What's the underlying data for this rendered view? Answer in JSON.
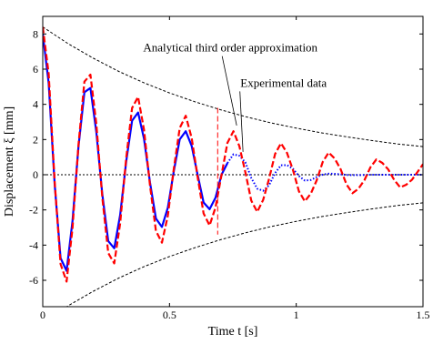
{
  "chart_data": {
    "type": "line",
    "xlabel": "Time  t  [s]",
    "ylabel": "Displacement ξ  [mm]",
    "xlim": [
      0,
      1.5
    ],
    "ylim": [
      -7.5,
      9
    ],
    "x_ticks": [
      0,
      0.5,
      1,
      1.5
    ],
    "x_tick_labels": [
      "0",
      "0.5",
      "1",
      "1.5"
    ],
    "y_ticks": [
      -6,
      -4,
      -2,
      0,
      2,
      4,
      6,
      8
    ],
    "y_tick_labels": [
      "-6",
      "-4",
      "-2",
      "0",
      "2",
      "4",
      "6",
      "8"
    ],
    "grid": false,
    "annotations": [
      {
        "text": "Analytical third order approximation",
        "x_data": 0.74,
        "y_data": 7.0
      },
      {
        "text": "Experimental data",
        "x_data": 0.95,
        "y_data": 5.0
      }
    ],
    "series": [
      {
        "name": "Analytical third order approximation",
        "color": "#ff0000",
        "style": "dashed",
        "x": [
          0,
          0.0235,
          0.047,
          0.0705,
          0.094,
          0.1175,
          0.141,
          0.1645,
          0.188,
          0.2115,
          0.235,
          0.2585,
          0.282,
          0.3055,
          0.329,
          0.3525,
          0.376,
          0.3995,
          0.423,
          0.4465,
          0.47,
          0.4935,
          0.517,
          0.5405,
          0.564,
          0.5875,
          0.611,
          0.6345,
          0.658,
          0.6815,
          0.705,
          0.7285,
          0.752,
          0.7755,
          0.799,
          0.8225,
          0.846,
          0.8695,
          0.893,
          0.9165,
          0.94,
          0.9635,
          0.987,
          1.0105,
          1.034,
          1.0575,
          1.081,
          1.1045,
          1.128,
          1.1515,
          1.175,
          1.1985,
          1.222,
          1.2455,
          1.269,
          1.2925,
          1.316,
          1.3395,
          1.363,
          1.3865,
          1.41,
          1.4335,
          1.457,
          1.4805,
          1.5
        ],
        "y": [
          8.4,
          5.75,
          -0.41,
          -5.08,
          -6.07,
          -3.04,
          1.72,
          5.29,
          5.69,
          2.88,
          -1.31,
          -4.45,
          -5.04,
          -2.76,
          0.93,
          3.79,
          4.43,
          2.56,
          -0.61,
          -3.19,
          -3.86,
          -2.33,
          0.35,
          2.66,
          3.35,
          2.09,
          -0.14,
          -2.2,
          -2.88,
          -1.86,
          -0.02,
          1.81,
          2.47,
          1.63,
          0.15,
          -1.47,
          -2.11,
          -1.43,
          -0.23,
          1.18,
          1.79,
          1.24,
          0.28,
          -0.94,
          -1.51,
          -1.07,
          -0.31,
          0.73,
          1.26,
          0.92,
          0.32,
          -0.56,
          -1.05,
          -0.79,
          -0.31,
          0.42,
          0.87,
          0.67,
          0.3,
          -0.3,
          -0.72,
          -0.57,
          -0.28,
          0.2,
          0.6
        ]
      },
      {
        "name": "Experimental data",
        "color": "#0000ff",
        "style": "solid-then-dotted",
        "style_change_x": 0.71,
        "x": [
          0,
          0.0235,
          0.047,
          0.0705,
          0.094,
          0.1175,
          0.141,
          0.1645,
          0.188,
          0.2115,
          0.235,
          0.2585,
          0.282,
          0.3055,
          0.329,
          0.3525,
          0.376,
          0.3995,
          0.423,
          0.4465,
          0.47,
          0.4935,
          0.517,
          0.5405,
          0.564,
          0.5875,
          0.611,
          0.6345,
          0.658,
          0.6815,
          0.705,
          0.7285,
          0.752,
          0.7755,
          0.799,
          0.8225,
          0.846,
          0.8695,
          0.893,
          0.9165,
          0.94,
          0.9635,
          0.987,
          1.0105,
          1.034,
          1.0575,
          1.081,
          1.1045,
          1.128,
          1.1515,
          1.175,
          1.1985,
          1.222,
          1.2455,
          1.269,
          1.2925,
          1.316,
          1.3395,
          1.363,
          1.3865,
          1.41,
          1.4335,
          1.457,
          1.4805,
          1.5
        ],
        "y": [
          8.0,
          5.21,
          -0.54,
          -4.74,
          -5.46,
          -2.64,
          1.61,
          4.69,
          4.93,
          2.42,
          -1.12,
          -3.77,
          -4.18,
          -2.28,
          0.74,
          3.07,
          3.54,
          2.05,
          -0.44,
          -2.49,
          -2.97,
          -1.87,
          0.21,
          2.01,
          2.47,
          1.64,
          -0.02,
          -1.58,
          -1.96,
          -1.31,
          0.0,
          0.66,
          1.16,
          1.08,
          0.71,
          -0.18,
          -0.79,
          -0.91,
          -0.6,
          0.1,
          0.54,
          0.55,
          0.34,
          -0.07,
          -0.33,
          -0.3,
          -0.13,
          0.01,
          0.06,
          0.05,
          0.02,
          -0.01,
          -0.02,
          -0.02,
          -0.01,
          0.0,
          0.0,
          0.0,
          0.0,
          0.0,
          0.0,
          0.0,
          0.0,
          0.0,
          0.0
        ]
      }
    ],
    "envelope": {
      "color": "#000000",
      "style": "dotted",
      "x": [
        0,
        0.1,
        0.2,
        0.3,
        0.4,
        0.5,
        0.6,
        0.7,
        0.8,
        0.9,
        1.0,
        1.1,
        1.2,
        1.3,
        1.4,
        1.5
      ],
      "upper": [
        8.4,
        7.45,
        6.62,
        5.87,
        5.22,
        4.65,
        4.15,
        3.7,
        3.3,
        2.95,
        2.65,
        2.38,
        2.15,
        1.94,
        1.75,
        1.6
      ],
      "lower": [
        -8.4,
        -7.45,
        -6.62,
        -5.87,
        -5.22,
        -4.65,
        -4.15,
        -3.7,
        -3.3,
        -2.95,
        -2.65,
        -2.38,
        -2.15,
        -1.94,
        -1.75,
        -1.6
      ]
    },
    "zero_line": {
      "y": 0,
      "color": "#000000",
      "style": "dotted"
    },
    "marker_line": {
      "x": 0.69,
      "y_range": [
        -3.4,
        3.8
      ],
      "color": "#ff0000",
      "style": "dashed"
    }
  }
}
